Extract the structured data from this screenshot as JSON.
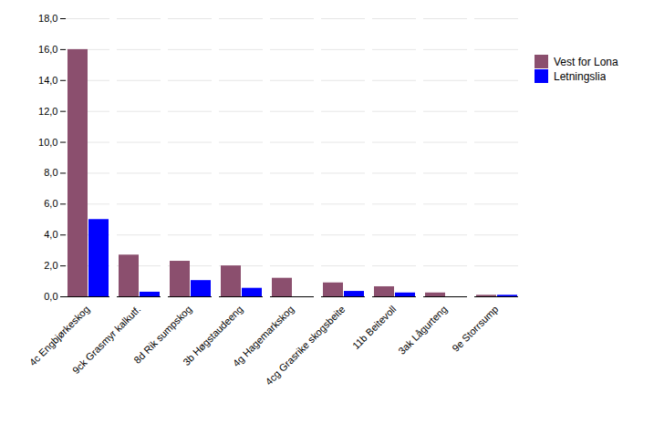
{
  "chart_data": {
    "type": "bar",
    "categories": [
      "4c Engbjørkeskog",
      "9ck Grasmyr kalkutf.",
      "8d Rik sumpskog",
      "3b Høgstaudeeng",
      "4g Hagemarkskog",
      "4cg Grasrike skogsbeite",
      "11b Beitevoll",
      "3ak Lågurteng",
      "9e Storrsump"
    ],
    "series": [
      {
        "name": "Vest for Lona",
        "color": "#8B4F6E",
        "values": [
          16.0,
          2.7,
          2.3,
          2.0,
          1.2,
          0.9,
          0.65,
          0.25,
          0.1
        ]
      },
      {
        "name": "Letningslia",
        "color": "#0000FF",
        "values": [
          5.0,
          0.3,
          1.05,
          0.55,
          0.0,
          0.35,
          0.25,
          0.0,
          0.1
        ]
      }
    ],
    "ylim": [
      0,
      18
    ],
    "yticks": [
      {
        "value": 0,
        "label": "0,0"
      },
      {
        "value": 2,
        "label": "2,0"
      },
      {
        "value": 4,
        "label": "4,0"
      },
      {
        "value": 6,
        "label": "6,0"
      },
      {
        "value": 8,
        "label": "8,0"
      },
      {
        "value": 10,
        "label": "10,0"
      },
      {
        "value": 12,
        "label": "12,0"
      },
      {
        "value": 14,
        "label": "14,0"
      },
      {
        "value": 16,
        "label": "16,0"
      },
      {
        "value": 18,
        "label": "18,0"
      }
    ],
    "grid": true,
    "legend": "right"
  }
}
